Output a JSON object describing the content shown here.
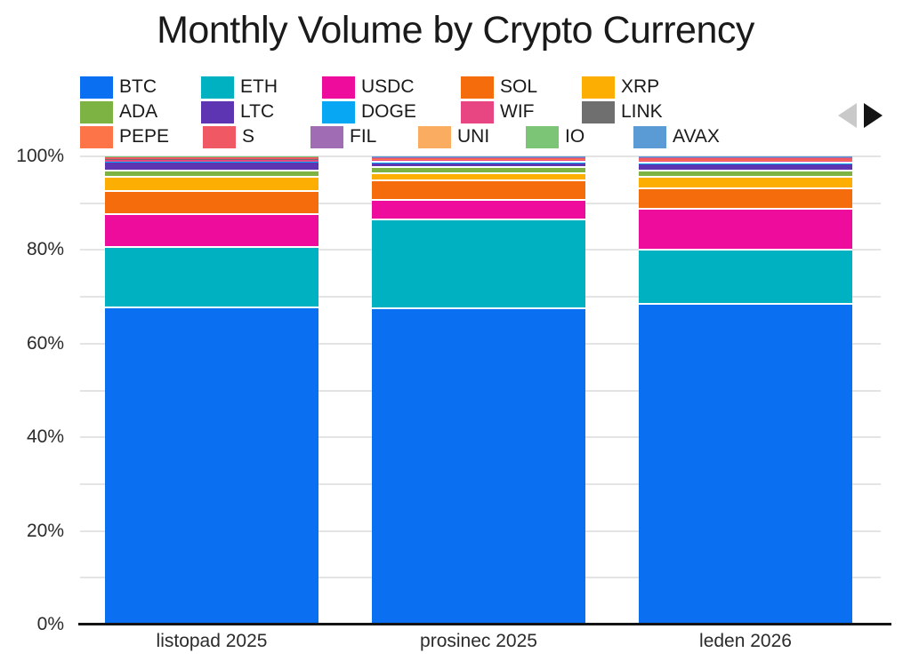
{
  "title": "Monthly Volume by Crypto Currency",
  "navigation": {
    "prev": "previous-period",
    "next": "next-period"
  },
  "yaxis": {
    "tick_labels": [
      "0%",
      "20%",
      "40%",
      "60%",
      "80%",
      "100%"
    ]
  },
  "legend_rows": [
    [
      "BTC",
      "ETH",
      "USDC",
      "SOL",
      "XRP"
    ],
    [
      "ADA",
      "LTC",
      "DOGE",
      "WIF",
      "LINK"
    ],
    [
      "PEPE",
      "S",
      "FIL",
      "UNI",
      "IO",
      "AVAX"
    ]
  ],
  "chart_data": {
    "type": "bar",
    "stacked": true,
    "stack_unit": "percent",
    "title": "Monthly Volume by Crypto Currency",
    "categories": [
      "listopad 2025",
      "prosinec 2025",
      "leden 2026"
    ],
    "series": [
      {
        "name": "BTC",
        "color": "#0a6ff0",
        "values": [
          67.5,
          67.3,
          68.3
        ]
      },
      {
        "name": "ETH",
        "color": "#00b1c2",
        "values": [
          13.0,
          19.0,
          11.5
        ]
      },
      {
        "name": "USDC",
        "color": "#ee0c9c",
        "values": [
          7.0,
          4.2,
          8.8
        ]
      },
      {
        "name": "SOL",
        "color": "#f56c0c",
        "values": [
          5.0,
          4.2,
          4.3
        ]
      },
      {
        "name": "XRP",
        "color": "#fcae03",
        "values": [
          3.0,
          1.6,
          2.5
        ]
      },
      {
        "name": "ADA",
        "color": "#7cb342",
        "values": [
          1.2,
          1.3,
          1.3
        ]
      },
      {
        "name": "LTC",
        "color": "#5d35b2",
        "values": [
          2.0,
          0.9,
          1.6
        ]
      },
      {
        "name": "DOGE",
        "color": "#07a7f3",
        "values": [
          0.1,
          0.1,
          0.1
        ]
      },
      {
        "name": "WIF",
        "color": "#e84682",
        "values": [
          0.5,
          0.6,
          0.6
        ]
      },
      {
        "name": "LINK",
        "color": "#6f6f6f",
        "values": [
          0.1,
          0.1,
          0.1
        ]
      },
      {
        "name": "PEPE",
        "color": "#fd7449",
        "values": [
          0.1,
          0.1,
          0.1
        ]
      },
      {
        "name": "S",
        "color": "#f05864",
        "values": [
          0.25,
          0.3,
          0.35
        ]
      },
      {
        "name": "FIL",
        "color": "#a06cb4",
        "values": [
          0.1,
          0.1,
          0.2
        ]
      },
      {
        "name": "UNI",
        "color": "#faac60",
        "values": [
          0.05,
          0.05,
          0.05
        ]
      },
      {
        "name": "IO",
        "color": "#7dc576",
        "values": [
          0.05,
          0.05,
          0.1
        ]
      },
      {
        "name": "AVAX",
        "color": "#5b9bd5",
        "values": [
          0.05,
          0.1,
          0.1
        ]
      }
    ],
    "ylabel": "",
    "ylim": [
      0,
      100
    ],
    "ytick_label_step": 20,
    "ytick_grid_step": 10,
    "ytick_suffix": "%",
    "grid": true,
    "legend_position": "top-left",
    "bar_gap_color": "#ffffff"
  }
}
